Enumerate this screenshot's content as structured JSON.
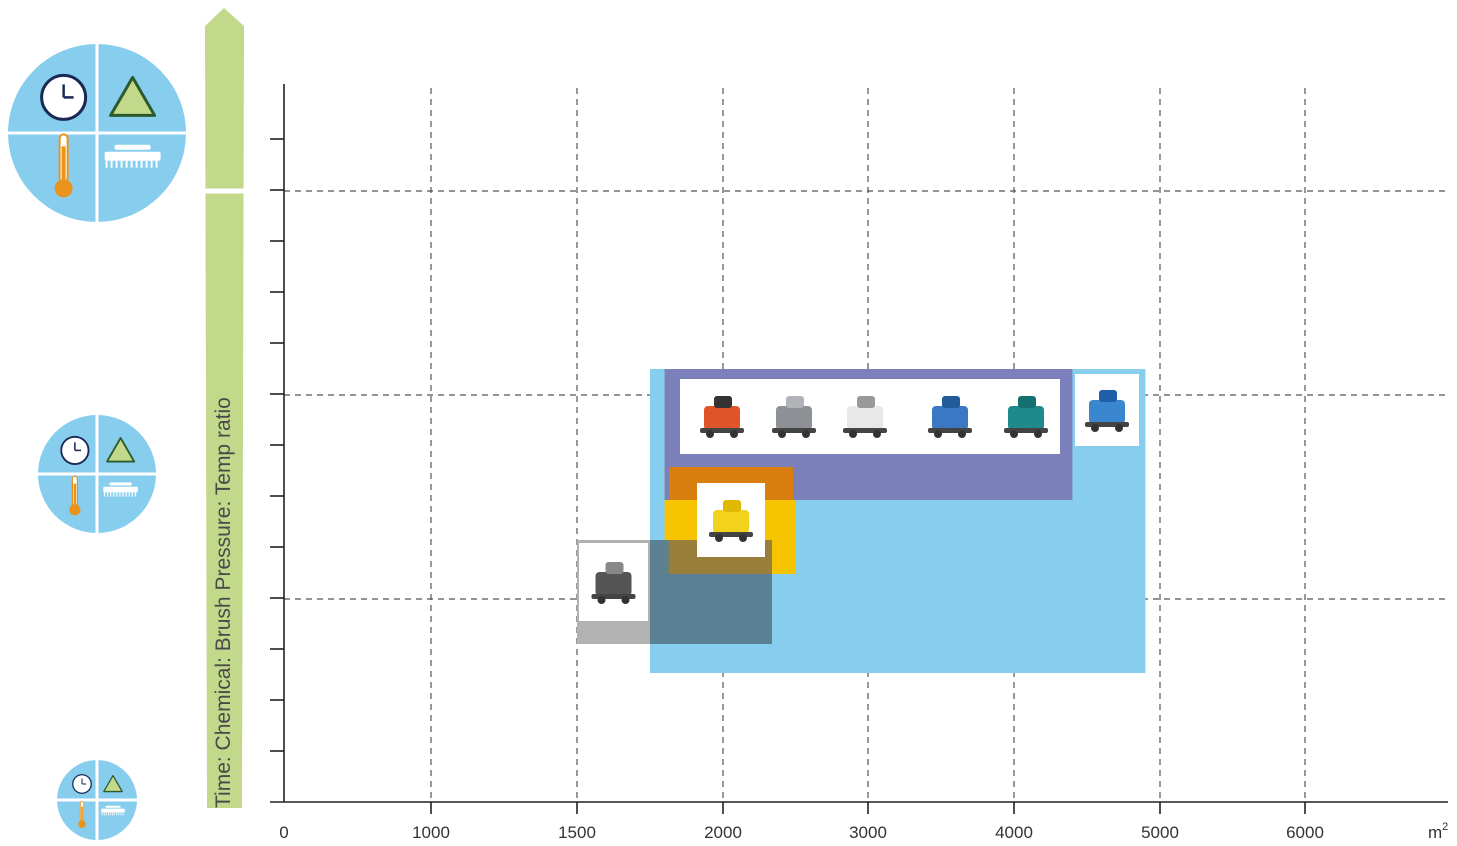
{
  "chart_data": {
    "type": "bar",
    "title": "",
    "xlabel": "",
    "ylabel": "Time: Chemical: Brush Pressure: Temp ratio",
    "x_unit": "m²",
    "x_ticks": [
      "0",
      "1000",
      "1500",
      "2000",
      "3000",
      "4000",
      "5000",
      "6000"
    ],
    "y_ticks": 13,
    "grid": true,
    "legend": "none",
    "ranges": [
      {
        "name": "",
        "x_start": 1500,
        "x_end": 2350,
        "color": "#5d7a8c"
      },
      {
        "name": "",
        "x_start": 1750,
        "x_end": 4900,
        "color": "#86cdee"
      },
      {
        "name": "",
        "x_start": 1800,
        "x_end": 2500,
        "color": "#f6c400"
      },
      {
        "name": "",
        "x_start": 1800,
        "x_end": 4400,
        "color": "#7b7fba"
      }
    ],
    "machine_icons": [
      "ride-on-scrubber-icon"
    ]
  },
  "ratio_icons": [
    "clock-icon",
    "chemical-triangle-icon",
    "thermometer-icon",
    "brush-icon"
  ]
}
